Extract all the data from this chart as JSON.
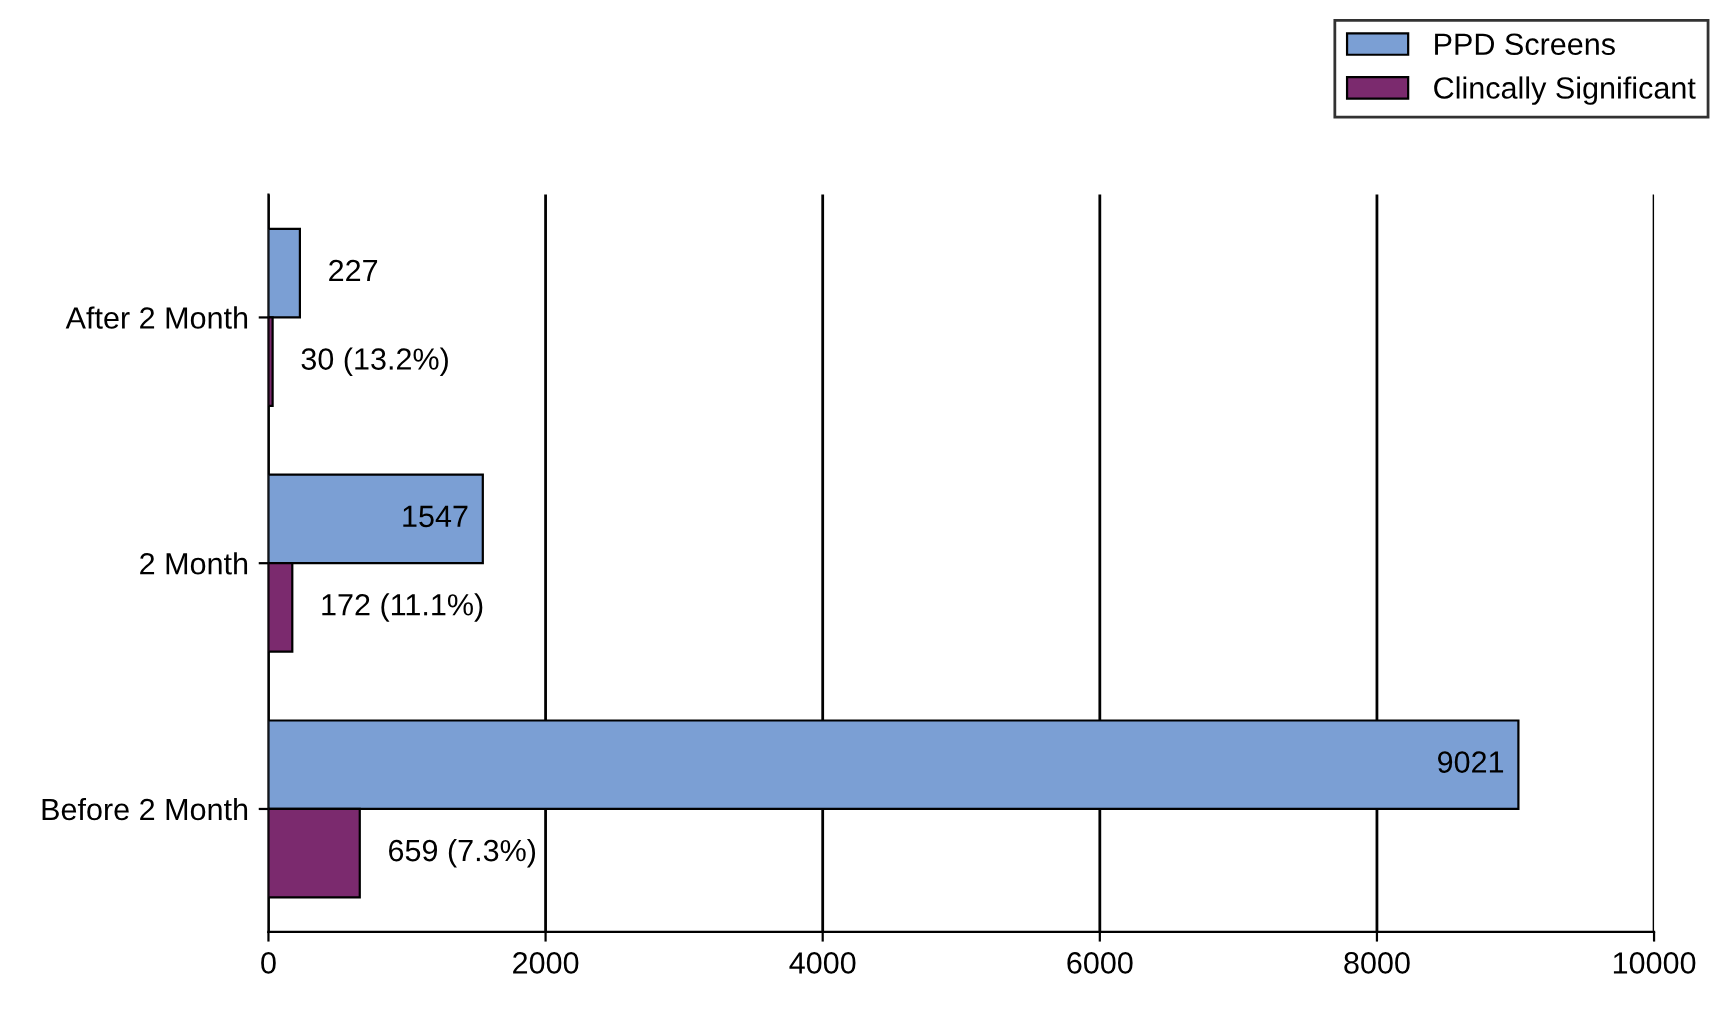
{
  "chart_data": {
    "type": "bar",
    "orientation": "horizontal",
    "categories": [
      "After 2 Month",
      "2 Month",
      "Before 2 Month"
    ],
    "series": [
      {
        "name": "PPD Screens",
        "color": "#7b9fd4",
        "values": [
          227,
          1547,
          9021
        ],
        "value_labels": [
          "227",
          "1547",
          "9021"
        ]
      },
      {
        "name": "Clincally Significant",
        "color": "#7b2a6e",
        "values": [
          30,
          172,
          659
        ],
        "value_labels": [
          "30 (13.2%)",
          "172 (11.1%)",
          "659 (7.3%)"
        ]
      }
    ],
    "xlim": [
      0,
      10000
    ],
    "xticks": [
      0,
      2000,
      4000,
      6000,
      8000,
      10000
    ],
    "grid": "x",
    "legend": "top right"
  }
}
